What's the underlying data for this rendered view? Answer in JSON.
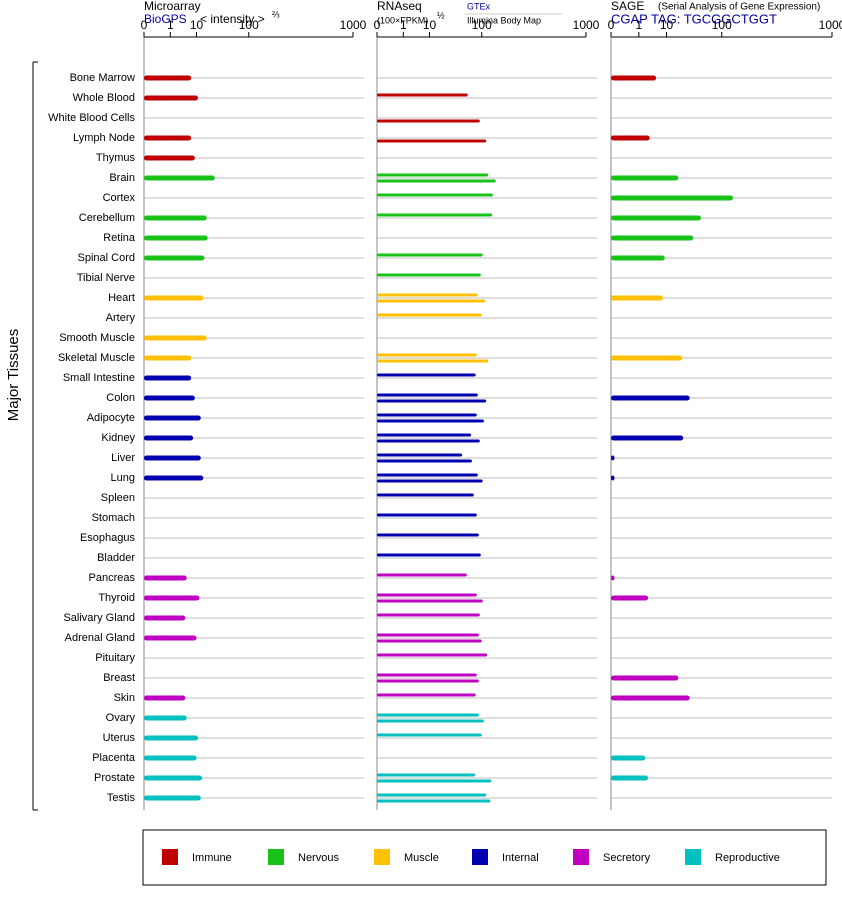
{
  "axis_label": "Major Tissues",
  "groups": [
    {
      "name": "Immune",
      "color": "#c00000",
      "categories": [
        "Bone Marrow",
        "Whole Blood",
        "White Blood Cells",
        "Lymph Node",
        "Thymus"
      ]
    },
    {
      "name": "Nervous",
      "color": "#19c219",
      "categories": [
        "Brain",
        "Cortex",
        "Cerebellum",
        "Retina",
        "Spinal Cord",
        "Tibial Nerve"
      ]
    },
    {
      "name": "Muscle",
      "color": "#ffc000",
      "categories": [
        "Heart",
        "Artery",
        "Smooth Muscle",
        "Skeletal Muscle"
      ]
    },
    {
      "name": "Internal",
      "color": "#0000b0",
      "categories": [
        "Small Intestine",
        "Colon",
        "Adipocyte",
        "Kidney",
        "Liver",
        "Lung",
        "Spleen",
        "Stomach",
        "Esophagus",
        "Bladder"
      ]
    },
    {
      "name": "Secretory",
      "color": "#c000c0",
      "categories": [
        "Pancreas",
        "Thyroid",
        "Salivary Gland",
        "Adrenal Gland",
        "Pituitary",
        "Breast",
        "Skin"
      ]
    },
    {
      "name": "Reproductive",
      "color": "#00c0c0",
      "categories": [
        "Ovary",
        "Uterus",
        "Placenta",
        "Prostate",
        "Testis"
      ]
    }
  ],
  "chart_data": [
    {
      "type": "bar",
      "title": "Microarray",
      "subtitle": "BioGPS",
      "unit": "< intensity >",
      "unit_power": "⅔",
      "xlim": [
        0,
        1000
      ],
      "xticks": [
        0,
        1,
        10,
        100,
        1000
      ],
      "values": [
        7,
        11,
        null,
        7,
        9,
        27,
        null,
        18,
        19,
        16,
        null,
        15,
        null,
        18,
        7,
        7,
        9,
        13,
        8,
        13,
        15,
        null,
        null,
        null,
        null,
        5,
        12,
        4.5,
        10,
        null,
        null,
        4.5,
        5,
        11,
        10,
        14,
        13
      ]
    },
    {
      "type": "bar",
      "title": "RNAseq",
      "unit": "(100×FPKM)",
      "unit_power": "½",
      "xlim": [
        0,
        1000
      ],
      "xticks": [
        0,
        1,
        10,
        100,
        1000
      ],
      "series": [
        {
          "name": "GTEx",
          "color": "#0000a0",
          "values": [
            null,
            62,
            null,
            null,
            null,
            122,
            140,
            137,
            null,
            103,
            97,
            88,
            100,
            null,
            85,
            82,
            88,
            85,
            70,
            50,
            88,
            77,
            85,
            91,
            97,
            60,
            85,
            94,
            91,
            118,
            85,
            82,
            91,
            100,
            null,
            80,
            115
          ]
        },
        {
          "name": "Illumina Body Map",
          "color": "#000000",
          "values": [
            null,
            null,
            94,
            115,
            null,
            152,
            null,
            null,
            null,
            null,
            null,
            111,
            null,
            null,
            122,
            null,
            115,
            107,
            94,
            72,
            103,
            null,
            null,
            null,
            null,
            null,
            103,
            null,
            100,
            null,
            91,
            null,
            107,
            null,
            null,
            133,
            130
          ]
        }
      ]
    },
    {
      "type": "bar",
      "title": "SAGE",
      "note": "(Serial Analysis of Gene Expression)",
      "subtitle": "CGAP TAG: TGCGGCTGGT",
      "xlim": [
        0,
        1000
      ],
      "xticks": [
        0,
        1,
        10,
        100,
        1000
      ],
      "values": [
        5,
        null,
        null,
        3,
        null,
        19,
        138,
        50,
        37,
        9,
        null,
        8,
        null,
        null,
        23,
        null,
        32,
        null,
        24,
        0.001,
        0.001,
        null,
        null,
        null,
        null,
        0.001,
        2.6,
        null,
        null,
        null,
        19,
        32,
        null,
        null,
        2,
        2.6,
        null
      ]
    }
  ]
}
